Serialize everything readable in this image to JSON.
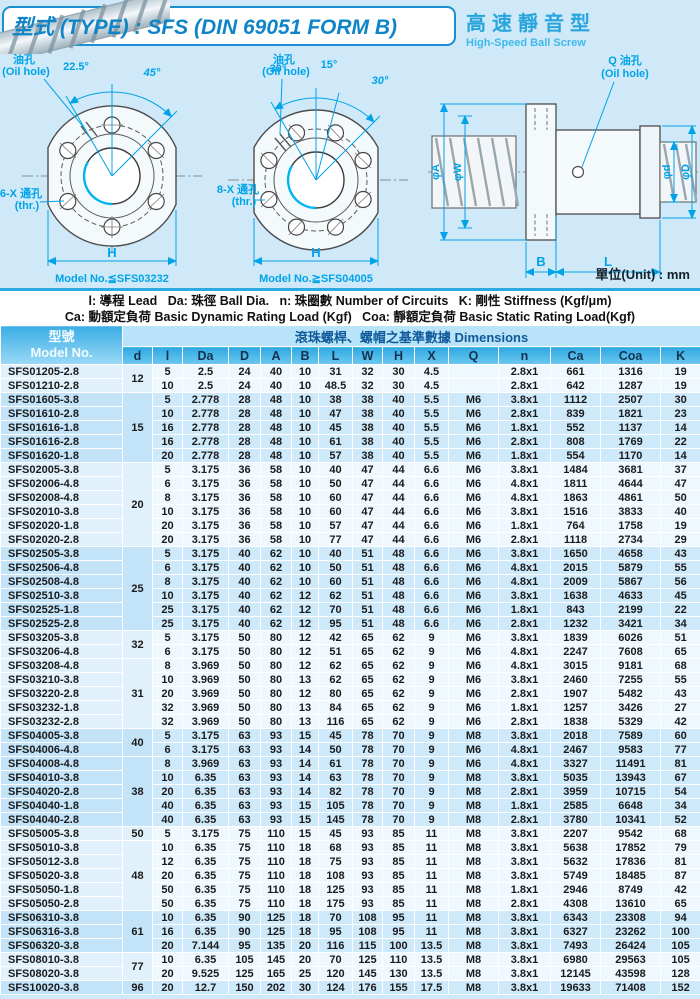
{
  "header": {
    "title": "型式 (TYPE) : SFS (DIN 69051 FORM B)",
    "right_title": "高速靜音型",
    "right_subtitle": "High-Speed Ball Screw"
  },
  "drawings": {
    "left": {
      "oil_hole_label": "油孔",
      "oil_hole_label_en": "(Oil hole)",
      "angle_a": "22.5°",
      "angle_b": "45°",
      "holes_label": "6-X 通孔",
      "holes_label_en": "(thr.)",
      "dim_h": "H",
      "model_note": "Model No.≦SFS03232"
    },
    "middle": {
      "oil_hole_label": "油孔",
      "oil_hole_label_en": "(Oil hole)",
      "angle_a": "30°",
      "angle_b": "15°",
      "angle_c": "30°",
      "holes_label": "8-X 通孔",
      "holes_label_en": "(thr.)",
      "dim_h": "H",
      "model_note": "Model No.≧SFS04005"
    },
    "side": {
      "oil_hole_label": "Q 油孔",
      "oil_hole_label_en": "(Oil hole)",
      "dim_phi_a": "φA",
      "dim_phi_w": "φW",
      "dim_phi_d_small": "φd",
      "dim_phi_d_big": "φD",
      "dim_b": "B",
      "dim_l": "L"
    },
    "unit_note": "單位(Unit) : mm"
  },
  "legend": {
    "line1": "l: 導程 Lead   Da: 珠徑 Ball Dia.   n: 珠圈數 Number of Circuits   K: 剛性 Stiffness (Kgf/μm)",
    "line2": "Ca: 動額定負荷 Basic Dynamic Rating Load (Kgf)   Coa: 靜額定負荷 Basic Static Rating Load(Kgf)"
  },
  "table": {
    "model_header_zh": "型號",
    "model_header_en": "Model No.",
    "dimensions_header": "滾珠螺桿、螺帽之基準數據 Dimensions",
    "columns": [
      "d",
      "l",
      "Da",
      "D",
      "A",
      "B",
      "L",
      "W",
      "H",
      "X",
      "Q",
      "n",
      "Ca",
      "Coa",
      "K"
    ],
    "d_groups": [
      {
        "value": "12",
        "start": 0,
        "count": 2
      },
      {
        "value": "15",
        "start": 2,
        "count": 5
      },
      {
        "value": "20",
        "start": 7,
        "count": 6
      },
      {
        "value": "25",
        "start": 13,
        "count": 6
      },
      {
        "value": "32",
        "start": 19,
        "count": 2
      },
      {
        "value": "31",
        "start": 21,
        "count": 5
      },
      {
        "value": "40",
        "start": 26,
        "count": 2
      },
      {
        "value": "38",
        "start": 28,
        "count": 5
      },
      {
        "value": "50",
        "start": 33,
        "count": 1
      },
      {
        "value": "48",
        "start": 34,
        "count": 5
      },
      {
        "value": "61",
        "start": 39,
        "count": 3
      },
      {
        "value": "77",
        "start": 42,
        "count": 2
      },
      {
        "value": "96",
        "start": 44,
        "count": 1
      }
    ],
    "bands": [
      {
        "start": 0,
        "count": 2,
        "shaded": false
      },
      {
        "start": 2,
        "count": 5,
        "shaded": true
      },
      {
        "start": 7,
        "count": 6,
        "shaded": false
      },
      {
        "start": 13,
        "count": 6,
        "shaded": true
      },
      {
        "start": 19,
        "count": 7,
        "shaded": false
      },
      {
        "start": 26,
        "count": 7,
        "shaded": true
      },
      {
        "start": 33,
        "count": 6,
        "shaded": false
      },
      {
        "start": 39,
        "count": 3,
        "shaded": true
      },
      {
        "start": 42,
        "count": 2,
        "shaded": false
      },
      {
        "start": 44,
        "count": 1,
        "shaded": true
      }
    ],
    "rows": [
      {
        "model": "SFS01205-2.8",
        "values": [
          "5",
          "2.5",
          "24",
          "40",
          "10",
          "31",
          "32",
          "30",
          "4.5",
          "",
          "2.8x1",
          "661",
          "1316",
          "19"
        ]
      },
      {
        "model": "SFS01210-2.8",
        "values": [
          "10",
          "2.5",
          "24",
          "40",
          "10",
          "48.5",
          "32",
          "30",
          "4.5",
          "",
          "2.8x1",
          "642",
          "1287",
          "19"
        ]
      },
      {
        "model": "SFS01605-3.8",
        "values": [
          "5",
          "2.778",
          "28",
          "48",
          "10",
          "38",
          "38",
          "40",
          "5.5",
          "M6",
          "3.8x1",
          "1112",
          "2507",
          "30"
        ]
      },
      {
        "model": "SFS01610-2.8",
        "values": [
          "10",
          "2.778",
          "28",
          "48",
          "10",
          "47",
          "38",
          "40",
          "5.5",
          "M6",
          "2.8x1",
          "839",
          "1821",
          "23"
        ]
      },
      {
        "model": "SFS01616-1.8",
        "values": [
          "16",
          "2.778",
          "28",
          "48",
          "10",
          "45",
          "38",
          "40",
          "5.5",
          "M6",
          "1.8x1",
          "552",
          "1137",
          "14"
        ]
      },
      {
        "model": "SFS01616-2.8",
        "values": [
          "16",
          "2.778",
          "28",
          "48",
          "10",
          "61",
          "38",
          "40",
          "5.5",
          "M6",
          "2.8x1",
          "808",
          "1769",
          "22"
        ]
      },
      {
        "model": "SFS01620-1.8",
        "values": [
          "20",
          "2.778",
          "28",
          "48",
          "10",
          "57",
          "38",
          "40",
          "5.5",
          "M6",
          "1.8x1",
          "554",
          "1170",
          "14"
        ]
      },
      {
        "model": "SFS02005-3.8",
        "values": [
          "5",
          "3.175",
          "36",
          "58",
          "10",
          "40",
          "47",
          "44",
          "6.6",
          "M6",
          "3.8x1",
          "1484",
          "3681",
          "37"
        ]
      },
      {
        "model": "SFS02006-4.8",
        "values": [
          "6",
          "3.175",
          "36",
          "58",
          "10",
          "50",
          "47",
          "44",
          "6.6",
          "M6",
          "4.8x1",
          "1811",
          "4644",
          "47"
        ]
      },
      {
        "model": "SFS02008-4.8",
        "values": [
          "8",
          "3.175",
          "36",
          "58",
          "10",
          "60",
          "47",
          "44",
          "6.6",
          "M6",
          "4.8x1",
          "1863",
          "4861",
          "50"
        ]
      },
      {
        "model": "SFS02010-3.8",
        "values": [
          "10",
          "3.175",
          "36",
          "58",
          "10",
          "60",
          "47",
          "44",
          "6.6",
          "M6",
          "3.8x1",
          "1516",
          "3833",
          "40"
        ]
      },
      {
        "model": "SFS02020-1.8",
        "values": [
          "20",
          "3.175",
          "36",
          "58",
          "10",
          "57",
          "47",
          "44",
          "6.6",
          "M6",
          "1.8x1",
          "764",
          "1758",
          "19"
        ]
      },
      {
        "model": "SFS02020-2.8",
        "values": [
          "20",
          "3.175",
          "36",
          "58",
          "10",
          "77",
          "47",
          "44",
          "6.6",
          "M6",
          "2.8x1",
          "1118",
          "2734",
          "29"
        ]
      },
      {
        "model": "SFS02505-3.8",
        "values": [
          "5",
          "3.175",
          "40",
          "62",
          "10",
          "40",
          "51",
          "48",
          "6.6",
          "M6",
          "3.8x1",
          "1650",
          "4658",
          "43"
        ]
      },
      {
        "model": "SFS02506-4.8",
        "values": [
          "6",
          "3.175",
          "40",
          "62",
          "10",
          "50",
          "51",
          "48",
          "6.6",
          "M6",
          "4.8x1",
          "2015",
          "5879",
          "55"
        ]
      },
      {
        "model": "SFS02508-4.8",
        "values": [
          "8",
          "3.175",
          "40",
          "62",
          "10",
          "60",
          "51",
          "48",
          "6.6",
          "M6",
          "4.8x1",
          "2009",
          "5867",
          "56"
        ]
      },
      {
        "model": "SFS02510-3.8",
        "values": [
          "10",
          "3.175",
          "40",
          "62",
          "12",
          "62",
          "51",
          "48",
          "6.6",
          "M6",
          "3.8x1",
          "1638",
          "4633",
          "45"
        ]
      },
      {
        "model": "SFS02525-1.8",
        "values": [
          "25",
          "3.175",
          "40",
          "62",
          "12",
          "70",
          "51",
          "48",
          "6.6",
          "M6",
          "1.8x1",
          "843",
          "2199",
          "22"
        ]
      },
      {
        "model": "SFS02525-2.8",
        "values": [
          "25",
          "3.175",
          "40",
          "62",
          "12",
          "95",
          "51",
          "48",
          "6.6",
          "M6",
          "2.8x1",
          "1232",
          "3421",
          "34"
        ]
      },
      {
        "model": "SFS03205-3.8",
        "values": [
          "5",
          "3.175",
          "50",
          "80",
          "12",
          "42",
          "65",
          "62",
          "9",
          "M6",
          "3.8x1",
          "1839",
          "6026",
          "51"
        ]
      },
      {
        "model": "SFS03206-4.8",
        "values": [
          "6",
          "3.175",
          "50",
          "80",
          "12",
          "51",
          "65",
          "62",
          "9",
          "M6",
          "4.8x1",
          "2247",
          "7608",
          "65"
        ]
      },
      {
        "model": "SFS03208-4.8",
        "values": [
          "8",
          "3.969",
          "50",
          "80",
          "12",
          "62",
          "65",
          "62",
          "9",
          "M6",
          "4.8x1",
          "3015",
          "9181",
          "68"
        ]
      },
      {
        "model": "SFS03210-3.8",
        "values": [
          "10",
          "3.969",
          "50",
          "80",
          "13",
          "62",
          "65",
          "62",
          "9",
          "M6",
          "3.8x1",
          "2460",
          "7255",
          "55"
        ]
      },
      {
        "model": "SFS03220-2.8",
        "values": [
          "20",
          "3.969",
          "50",
          "80",
          "12",
          "80",
          "65",
          "62",
          "9",
          "M6",
          "2.8x1",
          "1907",
          "5482",
          "43"
        ]
      },
      {
        "model": "SFS03232-1.8",
        "values": [
          "32",
          "3.969",
          "50",
          "80",
          "13",
          "84",
          "65",
          "62",
          "9",
          "M6",
          "1.8x1",
          "1257",
          "3426",
          "27"
        ]
      },
      {
        "model": "SFS03232-2.8",
        "values": [
          "32",
          "3.969",
          "50",
          "80",
          "13",
          "116",
          "65",
          "62",
          "9",
          "M6",
          "2.8x1",
          "1838",
          "5329",
          "42"
        ]
      },
      {
        "model": "SFS04005-3.8",
        "values": [
          "5",
          "3.175",
          "63",
          "93",
          "15",
          "45",
          "78",
          "70",
          "9",
          "M8",
          "3.8x1",
          "2018",
          "7589",
          "60"
        ]
      },
      {
        "model": "SFS04006-4.8",
        "values": [
          "6",
          "3.175",
          "63",
          "93",
          "14",
          "50",
          "78",
          "70",
          "9",
          "M6",
          "4.8x1",
          "2467",
          "9583",
          "77"
        ]
      },
      {
        "model": "SFS04008-4.8",
        "values": [
          "8",
          "3.969",
          "63",
          "93",
          "14",
          "61",
          "78",
          "70",
          "9",
          "M6",
          "4.8x1",
          "3327",
          "11491",
          "81"
        ]
      },
      {
        "model": "SFS04010-3.8",
        "values": [
          "10",
          "6.35",
          "63",
          "93",
          "14",
          "63",
          "78",
          "70",
          "9",
          "M8",
          "3.8x1",
          "5035",
          "13943",
          "67"
        ]
      },
      {
        "model": "SFS04020-2.8",
        "values": [
          "20",
          "6.35",
          "63",
          "93",
          "14",
          "82",
          "78",
          "70",
          "9",
          "M8",
          "2.8x1",
          "3959",
          "10715",
          "54"
        ]
      },
      {
        "model": "SFS04040-1.8",
        "values": [
          "40",
          "6.35",
          "63",
          "93",
          "15",
          "105",
          "78",
          "70",
          "9",
          "M8",
          "1.8x1",
          "2585",
          "6648",
          "34"
        ]
      },
      {
        "model": "SFS04040-2.8",
        "values": [
          "40",
          "6.35",
          "63",
          "93",
          "15",
          "145",
          "78",
          "70",
          "9",
          "M8",
          "2.8x1",
          "3780",
          "10341",
          "52"
        ]
      },
      {
        "model": "SFS05005-3.8",
        "values": [
          "5",
          "3.175",
          "75",
          "110",
          "15",
          "45",
          "93",
          "85",
          "11",
          "M8",
          "3.8x1",
          "2207",
          "9542",
          "68"
        ]
      },
      {
        "model": "SFS05010-3.8",
        "values": [
          "10",
          "6.35",
          "75",
          "110",
          "18",
          "68",
          "93",
          "85",
          "11",
          "M8",
          "3.8x1",
          "5638",
          "17852",
          "79"
        ]
      },
      {
        "model": "SFS05012-3.8",
        "values": [
          "12",
          "6.35",
          "75",
          "110",
          "18",
          "75",
          "93",
          "85",
          "11",
          "M8",
          "3.8x1",
          "5632",
          "17836",
          "81"
        ]
      },
      {
        "model": "SFS05020-3.8",
        "values": [
          "20",
          "6.35",
          "75",
          "110",
          "18",
          "108",
          "93",
          "85",
          "11",
          "M8",
          "3.8x1",
          "5749",
          "18485",
          "87"
        ]
      },
      {
        "model": "SFS05050-1.8",
        "values": [
          "50",
          "6.35",
          "75",
          "110",
          "18",
          "125",
          "93",
          "85",
          "11",
          "M8",
          "1.8x1",
          "2946",
          "8749",
          "42"
        ]
      },
      {
        "model": "SFS05050-2.8",
        "values": [
          "50",
          "6.35",
          "75",
          "110",
          "18",
          "175",
          "93",
          "85",
          "11",
          "M8",
          "2.8x1",
          "4308",
          "13610",
          "65"
        ]
      },
      {
        "model": "SFS06310-3.8",
        "values": [
          "10",
          "6.35",
          "90",
          "125",
          "18",
          "70",
          "108",
          "95",
          "11",
          "M8",
          "3.8x1",
          "6343",
          "23308",
          "94"
        ]
      },
      {
        "model": "SFS06316-3.8",
        "values": [
          "16",
          "6.35",
          "90",
          "125",
          "18",
          "95",
          "108",
          "95",
          "11",
          "M8",
          "3.8x1",
          "6327",
          "23262",
          "100"
        ]
      },
      {
        "model": "SFS06320-3.8",
        "values": [
          "20",
          "7.144",
          "95",
          "135",
          "20",
          "116",
          "115",
          "100",
          "13.5",
          "M8",
          "3.8x1",
          "7493",
          "26424",
          "105"
        ]
      },
      {
        "model": "SFS08010-3.8",
        "values": [
          "10",
          "6.35",
          "105",
          "145",
          "20",
          "70",
          "125",
          "110",
          "13.5",
          "M8",
          "3.8x1",
          "6980",
          "29563",
          "105"
        ]
      },
      {
        "model": "SFS08020-3.8",
        "values": [
          "20",
          "9.525",
          "125",
          "165",
          "25",
          "120",
          "145",
          "130",
          "13.5",
          "M8",
          "3.8x1",
          "12145",
          "43598",
          "128"
        ]
      },
      {
        "model": "SFS10020-3.8",
        "values": [
          "20",
          "12.7",
          "150",
          "202",
          "30",
          "124",
          "176",
          "155",
          "17.5",
          "M8",
          "3.8x1",
          "19633",
          "71408",
          "152"
        ]
      }
    ]
  }
}
